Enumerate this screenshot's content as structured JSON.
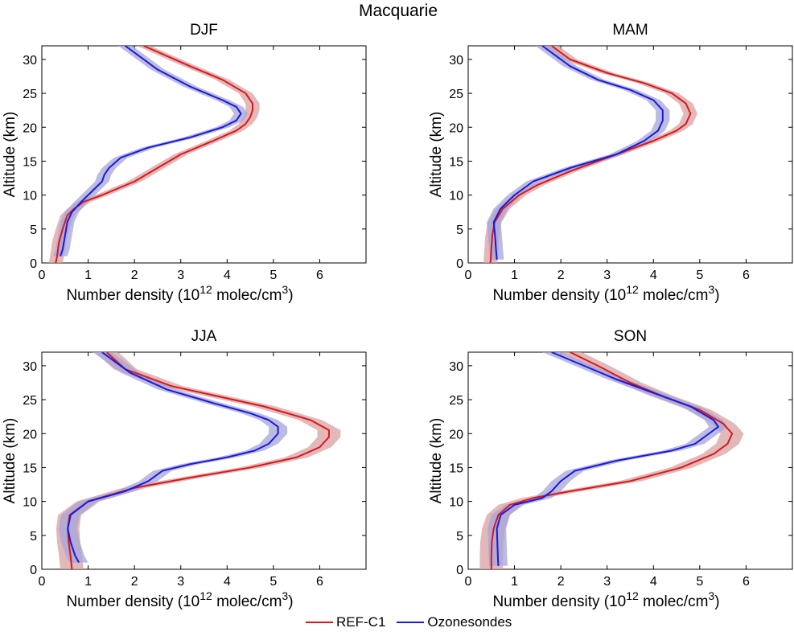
{
  "figure": {
    "title": "Macquarie"
  },
  "legend": [
    {
      "label": "REF-C1",
      "color": "#d7191c"
    },
    {
      "label": "Ozonesondes",
      "color": "#1a1adb"
    }
  ],
  "colors": {
    "ref": "#d7191c",
    "ref_band": "#d9a0a0",
    "obs": "#1a1adb",
    "obs_band": "#a6a6d9"
  },
  "chart_data": [
    {
      "type": "line",
      "title": "DJF",
      "xlabel": "Number density (10^12 molec/cm^3)",
      "ylabel": "Altitude (km)",
      "xlim": [
        0,
        7
      ],
      "ylim": [
        0,
        32
      ],
      "xticks": [
        0,
        1,
        2,
        3,
        4,
        5,
        6
      ],
      "yticks": [
        0,
        5,
        10,
        15,
        20,
        25,
        30
      ],
      "grid": false,
      "series": [
        {
          "name": "REF-C1",
          "band": 0.15,
          "x": [
            0.3,
            0.33,
            0.37,
            0.45,
            0.55,
            0.7,
            0.9,
            1.3,
            2.0,
            2.5,
            3.0,
            3.7,
            4.2,
            4.4,
            4.5,
            4.55,
            4.55,
            4.4,
            3.9,
            3.2,
            2.2
          ],
          "y": [
            0,
            1,
            3,
            5,
            7,
            8,
            9,
            10,
            12,
            14,
            16,
            18,
            19.5,
            20.5,
            21.5,
            22.5,
            23.5,
            25,
            27,
            29,
            32
          ]
        },
        {
          "name": "Ozonesondes",
          "band": 0.15,
          "x": [
            0.4,
            0.45,
            0.5,
            0.55,
            0.65,
            0.85,
            1.0,
            1.3,
            1.35,
            1.45,
            1.7,
            2.3,
            3.2,
            3.9,
            4.2,
            4.3,
            4.2,
            3.9,
            3.2,
            2.5,
            1.8
          ],
          "y": [
            1,
            2,
            4,
            6,
            7.5,
            9,
            10,
            12,
            13,
            14,
            15.5,
            17,
            18.5,
            20,
            21,
            22,
            23,
            24,
            26,
            28.5,
            32
          ]
        }
      ]
    },
    {
      "type": "line",
      "title": "MAM",
      "xlabel": "Number density (10^12 molec/cm^3)",
      "ylabel": "Altitude (km)",
      "xlim": [
        0,
        7
      ],
      "ylim": [
        0,
        32
      ],
      "xticks": [
        0,
        1,
        2,
        3,
        4,
        5,
        6
      ],
      "yticks": [
        0,
        5,
        10,
        15,
        20,
        25,
        30
      ],
      "grid": false,
      "series": [
        {
          "name": "REF-C1",
          "band": 0.15,
          "x": [
            0.48,
            0.5,
            0.52,
            0.57,
            0.75,
            1.1,
            1.5,
            2.2,
            3.2,
            4.0,
            4.5,
            4.7,
            4.8,
            4.7,
            4.4,
            3.8,
            3.0,
            2.2,
            1.8
          ],
          "y": [
            0,
            2,
            4,
            6,
            8,
            10,
            11.5,
            13.5,
            16,
            18,
            19.5,
            20.5,
            22,
            23.5,
            25,
            26.5,
            28,
            30,
            32
          ]
        },
        {
          "name": "Ozonesondes",
          "band": 0.15,
          "x": [
            0.62,
            0.6,
            0.58,
            0.55,
            0.7,
            1.0,
            1.4,
            2.2,
            3.2,
            3.8,
            4.1,
            4.2,
            4.2,
            4.0,
            3.5,
            2.8,
            2.2,
            1.6
          ],
          "y": [
            0.5,
            2,
            4,
            6,
            8,
            10,
            12,
            14,
            16,
            18,
            19.5,
            21,
            22.5,
            24,
            25.5,
            27,
            29,
            32
          ]
        }
      ]
    },
    {
      "type": "line",
      "title": "JJA",
      "xlabel": "Number density (10^12 molec/cm^3)",
      "ylabel": "Altitude (km)",
      "xlim": [
        0,
        7
      ],
      "ylim": [
        0,
        32
      ],
      "xticks": [
        0,
        1,
        2,
        3,
        4,
        5,
        6
      ],
      "yticks": [
        0,
        5,
        10,
        15,
        20,
        25,
        30
      ],
      "grid": false,
      "series": [
        {
          "name": "REF-C1",
          "band": 0.25,
          "x": [
            0.65,
            0.62,
            0.58,
            0.56,
            0.6,
            1.0,
            2.0,
            3.2,
            4.5,
            5.5,
            6.0,
            6.2,
            6.2,
            5.8,
            4.8,
            3.8,
            2.8,
            1.8,
            1.4
          ],
          "y": [
            0,
            2,
            4,
            6,
            8,
            10,
            12,
            13.5,
            15,
            16.5,
            18,
            19.5,
            20.5,
            22,
            24,
            25.5,
            27,
            29.5,
            32
          ]
        },
        {
          "name": "Ozonesondes",
          "band": 0.2,
          "x": [
            0.8,
            0.72,
            0.62,
            0.56,
            0.62,
            1.0,
            1.8,
            2.3,
            2.6,
            3.2,
            4.0,
            4.6,
            4.9,
            5.1,
            5.1,
            4.9,
            4.5,
            3.7,
            2.7,
            1.9,
            1.3
          ],
          "y": [
            1,
            2,
            4,
            6,
            8,
            10,
            11.5,
            13,
            14.5,
            15.5,
            16.5,
            17.5,
            18.5,
            20,
            21,
            22,
            23,
            24.5,
            26.5,
            29,
            32
          ]
        }
      ]
    },
    {
      "type": "line",
      "title": "SON",
      "xlabel": "Number density (10^12 molec/cm^3)",
      "ylabel": "Altitude (km)",
      "xlim": [
        0,
        7
      ],
      "ylim": [
        0,
        32
      ],
      "xticks": [
        0,
        1,
        2,
        3,
        4,
        5,
        6
      ],
      "yticks": [
        0,
        5,
        10,
        15,
        20,
        25,
        30
      ],
      "grid": false,
      "series": [
        {
          "name": "REF-C1",
          "band": 0.25,
          "x": [
            0.5,
            0.5,
            0.51,
            0.55,
            0.65,
            0.9,
            1.4,
            2.2,
            3.5,
            4.6,
            5.3,
            5.6,
            5.7,
            5.5,
            5.0,
            4.2,
            3.5,
            2.8,
            2.2
          ],
          "y": [
            0,
            2,
            4,
            6,
            8,
            9.5,
            10.5,
            11.5,
            13,
            15,
            17,
            18.5,
            20,
            21.5,
            23.5,
            25.5,
            27.5,
            30,
            32
          ]
        },
        {
          "name": "Ozonesondes",
          "band": 0.2,
          "x": [
            0.65,
            0.64,
            0.63,
            0.62,
            0.7,
            1.0,
            1.6,
            1.8,
            2.0,
            2.3,
            3.2,
            4.4,
            4.9,
            5.2,
            5.4,
            5.3,
            4.8,
            4.0,
            3.2,
            2.5,
            1.8
          ],
          "y": [
            0.5,
            2,
            4,
            6,
            8,
            9.5,
            10.5,
            11.5,
            13,
            14.5,
            16,
            17.5,
            18.5,
            20,
            21,
            22,
            24,
            26,
            28,
            30,
            32
          ]
        }
      ]
    }
  ]
}
